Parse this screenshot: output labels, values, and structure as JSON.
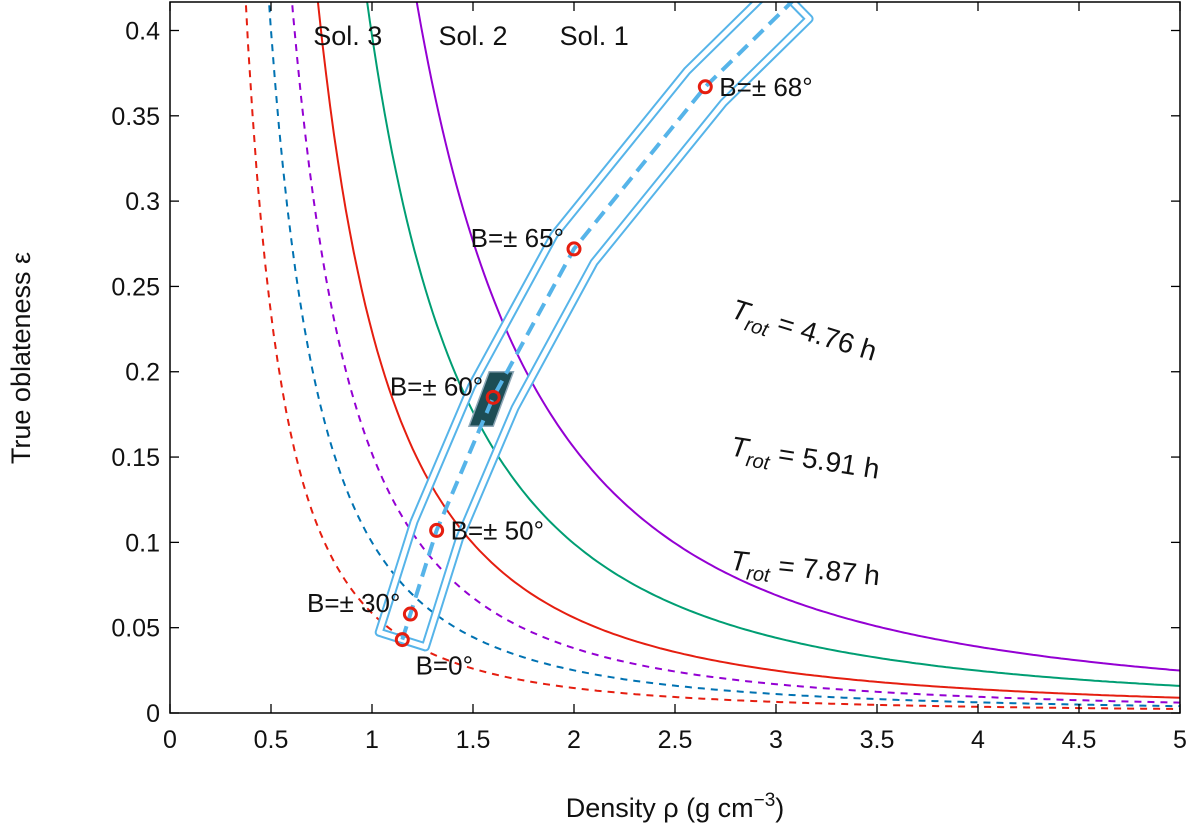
{
  "chart_data": {
    "type": "line",
    "xlabel": "Density ρ (g cm−3)",
    "xlabel_parts": {
      "main": "Density ρ (g cm",
      "sup": "−3",
      "close": ")"
    },
    "ylabel": "True oblateness ε",
    "xlim": [
      0,
      5
    ],
    "ylim": [
      0,
      0.4167
    ],
    "x_ticks": [
      0,
      0.5,
      1,
      1.5,
      2,
      2.5,
      3,
      3.5,
      4,
      4.5,
      5
    ],
    "x_tick_labels": [
      "0",
      "0.5",
      "1",
      "1.5",
      "2",
      "2.5",
      "3",
      "3.5",
      "4",
      "4.5",
      "5"
    ],
    "y_ticks": [
      0,
      0.05,
      0.1,
      0.15,
      0.2,
      0.25,
      0.3,
      0.35,
      0.4
    ],
    "y_tick_labels": [
      "0",
      "0.05",
      "0.1",
      "0.15",
      "0.2",
      "0.25",
      "0.3",
      "0.35",
      "0.4"
    ],
    "grid": false,
    "legend": "none",
    "series": [
      {
        "name": "T_rot = 4.76 h",
        "style": "solid",
        "color": "#9400d3",
        "k": 0.622
      },
      {
        "name": "T_rot = 5.91 h",
        "style": "solid",
        "color": "#009e73",
        "k": 0.397
      },
      {
        "name": "T_rot = 7.87 h",
        "style": "solid",
        "color": "#e51e10",
        "k": 0.2235
      },
      {
        "name": "dashed purple",
        "style": "dashed",
        "color": "#9400d3",
        "k": 0.152
      },
      {
        "name": "dashed blue",
        "style": "dashed",
        "color": "#0072b2",
        "k": 0.1
      },
      {
        "name": "dashed red",
        "style": "dashed",
        "color": "#e51e10",
        "k": 0.0585
      }
    ],
    "band": {
      "name": "constraint band",
      "color": "#56b4e9",
      "center": [
        {
          "x": 1.15,
          "y": 0.043
        },
        {
          "x": 1.19,
          "y": 0.058
        },
        {
          "x": 1.32,
          "y": 0.107
        },
        {
          "x": 1.6,
          "y": 0.185
        },
        {
          "x": 2.0,
          "y": 0.272
        },
        {
          "x": 2.65,
          "y": 0.367
        },
        {
          "x": 3.08,
          "y": 0.417
        }
      ],
      "half_width": 0.12
    },
    "highlight_box": {
      "x": [
        1.48,
        1.7
      ],
      "y": [
        0.168,
        0.2
      ],
      "color": "#1d4d55"
    },
    "points": [
      {
        "x": 1.15,
        "y": 0.043,
        "label": "B=0°",
        "label_pos": "below"
      },
      {
        "x": 1.19,
        "y": 0.058,
        "label": "B=± 30°",
        "label_pos": "left"
      },
      {
        "x": 1.32,
        "y": 0.107,
        "label": "B=± 50°",
        "label_pos": "right"
      },
      {
        "x": 1.6,
        "y": 0.185,
        "label": "B=± 60°",
        "label_pos": "left"
      },
      {
        "x": 2.0,
        "y": 0.272,
        "label": "B=± 65°",
        "label_pos": "left"
      },
      {
        "x": 2.65,
        "y": 0.367,
        "label": "B=± 68°",
        "label_pos": "right"
      }
    ],
    "point_color": "#e51e10",
    "solution_labels": [
      {
        "text": "Sol. 3",
        "x": 0.88
      },
      {
        "text": "Sol. 2",
        "x": 1.5
      },
      {
        "text": "Sol. 1",
        "x": 2.1
      }
    ],
    "rotation_labels": [
      {
        "T": "T",
        "sub": "rot",
        "value": " = 4.76 h",
        "x": 2.77,
        "y": 0.232,
        "angle": 17
      },
      {
        "T": "T",
        "sub": "rot",
        "value": " = 5.91 h",
        "x": 2.77,
        "y": 0.151,
        "angle": 9
      },
      {
        "T": "T",
        "sub": "rot",
        "value": " = 7.87 h",
        "x": 2.77,
        "y": 0.084,
        "angle": 6
      }
    ]
  }
}
